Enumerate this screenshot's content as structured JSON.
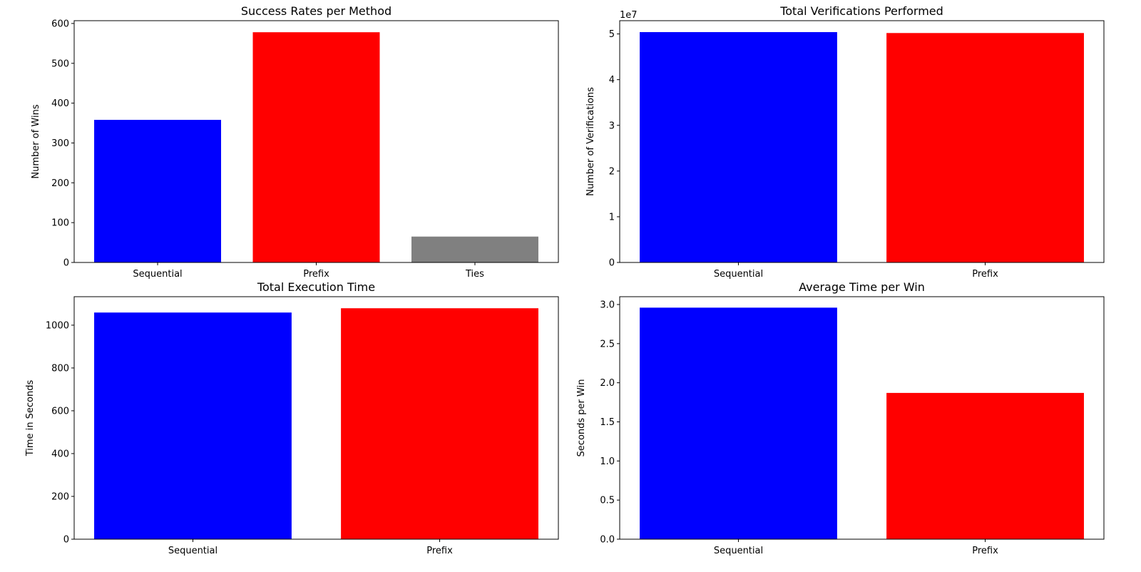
{
  "figure": {
    "colors": {
      "blue": "#0000ff",
      "red": "#ff0000",
      "gray": "#808080"
    }
  },
  "chart_data": [
    {
      "type": "bar",
      "title": "Success Rates per Method",
      "xlabel": "",
      "ylabel": "Number of Wins",
      "categories": [
        "Sequential",
        "Prefix",
        "Ties"
      ],
      "values": [
        358,
        578,
        65
      ],
      "colors": [
        "#0000ff",
        "#ff0000",
        "#808080"
      ],
      "ylim": [
        0,
        607
      ],
      "yticks": [
        0,
        100,
        200,
        300,
        400,
        500,
        600
      ],
      "ytick_labels": [
        "0",
        "100",
        "200",
        "300",
        "400",
        "500",
        "600"
      ],
      "offset_text": ""
    },
    {
      "type": "bar",
      "title": "Total Verifications Performed",
      "xlabel": "",
      "ylabel": "Number of Verifications",
      "categories": [
        "Sequential",
        "Prefix"
      ],
      "values": [
        50400000,
        50200000
      ],
      "colors": [
        "#0000ff",
        "#ff0000"
      ],
      "ylim": [
        0,
        52900000
      ],
      "yticks": [
        0,
        10000000,
        20000000,
        30000000,
        40000000,
        50000000
      ],
      "ytick_labels": [
        "0",
        "1",
        "2",
        "3",
        "4",
        "5"
      ],
      "offset_text": "1e7"
    },
    {
      "type": "bar",
      "title": "Total Execution Time",
      "xlabel": "",
      "ylabel": "Time in Seconds",
      "categories": [
        "Sequential",
        "Prefix"
      ],
      "values": [
        1059,
        1079
      ],
      "colors": [
        "#0000ff",
        "#ff0000"
      ],
      "ylim": [
        0,
        1133
      ],
      "yticks": [
        0,
        200,
        400,
        600,
        800,
        1000
      ],
      "ytick_labels": [
        "0",
        "200",
        "400",
        "600",
        "800",
        "1000"
      ],
      "offset_text": ""
    },
    {
      "type": "bar",
      "title": "Average Time per Win",
      "xlabel": "",
      "ylabel": "Seconds per Win",
      "categories": [
        "Sequential",
        "Prefix"
      ],
      "values": [
        2.96,
        1.87
      ],
      "colors": [
        "#0000ff",
        "#ff0000"
      ],
      "ylim": [
        0,
        3.1
      ],
      "yticks": [
        0,
        0.5,
        1.0,
        1.5,
        2.0,
        2.5,
        3.0
      ],
      "ytick_labels": [
        "0.0",
        "0.5",
        "1.0",
        "1.5",
        "2.0",
        "2.5",
        "3.0"
      ],
      "offset_text": ""
    }
  ]
}
